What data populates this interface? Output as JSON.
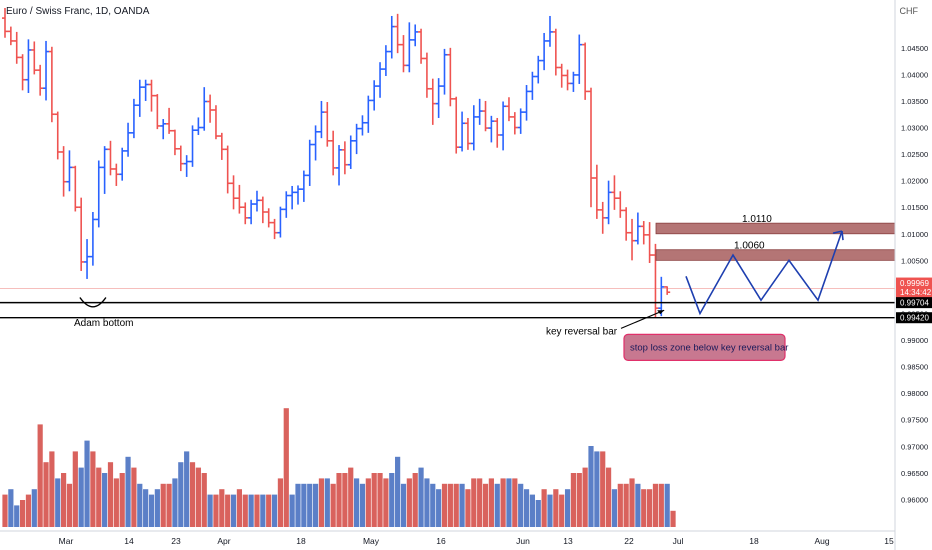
{
  "header": {
    "symbol": "Euro / Swiss Franc, 1D, OANDA",
    "currency": "CHF"
  },
  "colors": {
    "up": "#2962ff",
    "down": "#ef5350",
    "vol_up": "#5b7fc7",
    "vol_down": "#d9625d",
    "zone_fill": "#b47575",
    "arrow": "#1e3fb0",
    "stop_fill": "#c87890",
    "stop_border": "#e0306a"
  },
  "chart_data": {
    "type": "ohlc",
    "ylim": [
      0.9565,
      1.0525
    ],
    "yticks": [
      "1.04500",
      "1.04000",
      "1.03500",
      "1.03000",
      "1.02500",
      "1.02000",
      "1.01500",
      "1.01000",
      "1.00500",
      "1.00000",
      "0.99500",
      "0.99000",
      "0.98500",
      "0.98000",
      "0.97500",
      "0.97000",
      "0.96500",
      "0.96000"
    ],
    "xticks": [
      "Mar",
      "14",
      "23",
      "Apr",
      "18",
      "May",
      "16",
      "Jun",
      "13",
      "22",
      "Jul",
      "18",
      "Aug",
      "15"
    ],
    "bars": [
      {
        "o": 1.0506,
        "h": 1.0525,
        "l": 1.0469,
        "c": 1.0481
      },
      {
        "o": 1.0481,
        "h": 1.049,
        "l": 1.0455,
        "c": 1.0463
      },
      {
        "o": 1.0463,
        "h": 1.048,
        "l": 1.042,
        "c": 1.0432
      },
      {
        "o": 1.0432,
        "h": 1.0438,
        "l": 1.037,
        "c": 1.039
      },
      {
        "o": 1.039,
        "h": 1.0466,
        "l": 1.0365,
        "c": 1.0446
      },
      {
        "o": 1.0446,
        "h": 1.0462,
        "l": 1.04,
        "c": 1.0408
      },
      {
        "o": 1.0408,
        "h": 1.0418,
        "l": 1.036,
        "c": 1.0374
      },
      {
        "o": 1.0374,
        "h": 1.0463,
        "l": 1.0351,
        "c": 1.0443
      },
      {
        "o": 1.0443,
        "h": 1.0452,
        "l": 1.031,
        "c": 1.0325
      },
      {
        "o": 1.0325,
        "h": 1.033,
        "l": 1.024,
        "c": 1.0254
      },
      {
        "o": 1.0254,
        "h": 1.0265,
        "l": 1.017,
        "c": 1.0198
      },
      {
        "o": 1.0198,
        "h": 1.0257,
        "l": 1.018,
        "c": 1.0225
      },
      {
        "o": 1.0225,
        "h": 1.0228,
        "l": 1.0142,
        "c": 1.015
      },
      {
        "o": 1.015,
        "h": 1.0168,
        "l": 1.003,
        "c": 1.0047
      },
      {
        "o": 1.0047,
        "h": 1.009,
        "l": 1.0015,
        "c": 1.0057
      },
      {
        "o": 1.0057,
        "h": 1.0141,
        "l": 1.004,
        "c": 1.0127
      },
      {
        "o": 1.0127,
        "h": 1.0238,
        "l": 1.0112,
        "c": 1.0225
      },
      {
        "o": 1.0225,
        "h": 1.0265,
        "l": 1.0175,
        "c": 1.0259
      },
      {
        "o": 1.0259,
        "h": 1.0275,
        "l": 1.021,
        "c": 1.0222
      },
      {
        "o": 1.0222,
        "h": 1.0232,
        "l": 1.019,
        "c": 1.0212
      },
      {
        "o": 1.0212,
        "h": 1.0262,
        "l": 1.02,
        "c": 1.0256
      },
      {
        "o": 1.0256,
        "h": 1.0309,
        "l": 1.0245,
        "c": 1.029
      },
      {
        "o": 1.029,
        "h": 1.0354,
        "l": 1.028,
        "c": 1.0342
      },
      {
        "o": 1.0342,
        "h": 1.039,
        "l": 1.032,
        "c": 1.0376
      },
      {
        "o": 1.0376,
        "h": 1.039,
        "l": 1.035,
        "c": 1.0381
      },
      {
        "o": 1.0381,
        "h": 1.039,
        "l": 1.033,
        "c": 1.036
      },
      {
        "o": 1.036,
        "h": 1.0363,
        "l": 1.0297,
        "c": 1.0303
      },
      {
        "o": 1.0303,
        "h": 1.0316,
        "l": 1.0278,
        "c": 1.0307
      },
      {
        "o": 1.0307,
        "h": 1.0337,
        "l": 1.0288,
        "c": 1.0294
      },
      {
        "o": 1.0294,
        "h": 1.0296,
        "l": 1.0248,
        "c": 1.026
      },
      {
        "o": 1.026,
        "h": 1.0266,
        "l": 1.0218,
        "c": 1.0232
      },
      {
        "o": 1.0232,
        "h": 1.0248,
        "l": 1.0207,
        "c": 1.0236
      },
      {
        "o": 1.0236,
        "h": 1.0304,
        "l": 1.0226,
        "c": 1.0295
      },
      {
        "o": 1.0295,
        "h": 1.0319,
        "l": 1.0286,
        "c": 1.03
      },
      {
        "o": 1.03,
        "h": 1.0376,
        "l": 1.0294,
        "c": 1.0349
      },
      {
        "o": 1.0349,
        "h": 1.0362,
        "l": 1.0309,
        "c": 1.0333
      },
      {
        "o": 1.0333,
        "h": 1.0342,
        "l": 1.0278,
        "c": 1.0284
      },
      {
        "o": 1.0284,
        "h": 1.029,
        "l": 1.0239,
        "c": 1.0259
      },
      {
        "o": 1.0259,
        "h": 1.0266,
        "l": 1.0176,
        "c": 1.0195
      },
      {
        "o": 1.0195,
        "h": 1.021,
        "l": 1.0146,
        "c": 1.0167
      },
      {
        "o": 1.0167,
        "h": 1.0192,
        "l": 1.0138,
        "c": 1.015
      },
      {
        "o": 1.015,
        "h": 1.0159,
        "l": 1.0118,
        "c": 1.013
      },
      {
        "o": 1.013,
        "h": 1.0164,
        "l": 1.0118,
        "c": 1.0156
      },
      {
        "o": 1.0156,
        "h": 1.0181,
        "l": 1.0142,
        "c": 1.0163
      },
      {
        "o": 1.0163,
        "h": 1.017,
        "l": 1.012,
        "c": 1.0141
      },
      {
        "o": 1.0141,
        "h": 1.0148,
        "l": 1.0112,
        "c": 1.0121
      },
      {
        "o": 1.0121,
        "h": 1.0128,
        "l": 1.009,
        "c": 1.0102
      },
      {
        "o": 1.0102,
        "h": 1.0151,
        "l": 1.0093,
        "c": 1.0146
      },
      {
        "o": 1.0146,
        "h": 1.018,
        "l": 1.013,
        "c": 1.0172
      },
      {
        "o": 1.0172,
        "h": 1.019,
        "l": 1.0146,
        "c": 1.0178
      },
      {
        "o": 1.0178,
        "h": 1.0191,
        "l": 1.0155,
        "c": 1.0184
      },
      {
        "o": 1.0184,
        "h": 1.0219,
        "l": 1.016,
        "c": 1.021
      },
      {
        "o": 1.021,
        "h": 1.0277,
        "l": 1.019,
        "c": 1.0268
      },
      {
        "o": 1.0268,
        "h": 1.0304,
        "l": 1.0238,
        "c": 1.0292
      },
      {
        "o": 1.0292,
        "h": 1.035,
        "l": 1.028,
        "c": 1.0329
      },
      {
        "o": 1.0329,
        "h": 1.0348,
        "l": 1.0264,
        "c": 1.0275
      },
      {
        "o": 1.0275,
        "h": 1.0294,
        "l": 1.021,
        "c": 1.0224
      },
      {
        "o": 1.0224,
        "h": 1.0267,
        "l": 1.0191,
        "c": 1.0258
      },
      {
        "o": 1.0258,
        "h": 1.0274,
        "l": 1.0212,
        "c": 1.023
      },
      {
        "o": 1.023,
        "h": 1.0285,
        "l": 1.0222,
        "c": 1.0275
      },
      {
        "o": 1.0275,
        "h": 1.0307,
        "l": 1.025,
        "c": 1.0298
      },
      {
        "o": 1.0298,
        "h": 1.0323,
        "l": 1.0285,
        "c": 1.0309
      },
      {
        "o": 1.0309,
        "h": 1.036,
        "l": 1.029,
        "c": 1.0351
      },
      {
        "o": 1.0351,
        "h": 1.0389,
        "l": 1.0332,
        "c": 1.0378
      },
      {
        "o": 1.0378,
        "h": 1.0423,
        "l": 1.0356,
        "c": 1.041
      },
      {
        "o": 1.041,
        "h": 1.0455,
        "l": 1.0397,
        "c": 1.0443
      },
      {
        "o": 1.0443,
        "h": 1.051,
        "l": 1.043,
        "c": 1.049
      },
      {
        "o": 1.049,
        "h": 1.0514,
        "l": 1.044,
        "c": 1.0456
      },
      {
        "o": 1.0456,
        "h": 1.0474,
        "l": 1.0404,
        "c": 1.0417
      },
      {
        "o": 1.0417,
        "h": 1.0498,
        "l": 1.0404,
        "c": 1.0465
      },
      {
        "o": 1.0465,
        "h": 1.0494,
        "l": 1.0453,
        "c": 1.048
      },
      {
        "o": 1.048,
        "h": 1.0486,
        "l": 1.042,
        "c": 1.043
      },
      {
        "o": 1.043,
        "h": 1.0441,
        "l": 1.0356,
        "c": 1.0373
      },
      {
        "o": 1.0373,
        "h": 1.0392,
        "l": 1.0305,
        "c": 1.0345
      },
      {
        "o": 1.0345,
        "h": 1.0393,
        "l": 1.0318,
        "c": 1.0378
      },
      {
        "o": 1.0378,
        "h": 1.0448,
        "l": 1.0362,
        "c": 1.0437
      },
      {
        "o": 1.0437,
        "h": 1.045,
        "l": 1.034,
        "c": 1.0354
      },
      {
        "o": 1.0354,
        "h": 1.0358,
        "l": 1.0251,
        "c": 1.0263
      },
      {
        "o": 1.0263,
        "h": 1.033,
        "l": 1.0255,
        "c": 1.0308
      },
      {
        "o": 1.0308,
        "h": 1.0318,
        "l": 1.0258,
        "c": 1.027
      },
      {
        "o": 1.027,
        "h": 1.0342,
        "l": 1.0257,
        "c": 1.032
      },
      {
        "o": 1.032,
        "h": 1.0354,
        "l": 1.0305,
        "c": 1.0331
      },
      {
        "o": 1.0331,
        "h": 1.035,
        "l": 1.0293,
        "c": 1.0299
      },
      {
        "o": 1.0299,
        "h": 1.0322,
        "l": 1.0272,
        "c": 1.0312
      },
      {
        "o": 1.0312,
        "h": 1.0318,
        "l": 1.0262,
        "c": 1.0286
      },
      {
        "o": 1.0286,
        "h": 1.0349,
        "l": 1.0257,
        "c": 1.034
      },
      {
        "o": 1.034,
        "h": 1.0357,
        "l": 1.0312,
        "c": 1.032
      },
      {
        "o": 1.032,
        "h": 1.0329,
        "l": 1.0287,
        "c": 1.03
      },
      {
        "o": 1.03,
        "h": 1.0336,
        "l": 1.0288,
        "c": 1.0329
      },
      {
        "o": 1.0329,
        "h": 1.038,
        "l": 1.0313,
        "c": 1.0368
      },
      {
        "o": 1.0368,
        "h": 1.0405,
        "l": 1.0352,
        "c": 1.0396
      },
      {
        "o": 1.0396,
        "h": 1.0435,
        "l": 1.0383,
        "c": 1.0426
      },
      {
        "o": 1.0426,
        "h": 1.0478,
        "l": 1.0408,
        "c": 1.0463
      },
      {
        "o": 1.0463,
        "h": 1.051,
        "l": 1.0452,
        "c": 1.048
      },
      {
        "o": 1.048,
        "h": 1.0486,
        "l": 1.0398,
        "c": 1.0413
      },
      {
        "o": 1.0413,
        "h": 1.042,
        "l": 1.0375,
        "c": 1.0398
      },
      {
        "o": 1.0398,
        "h": 1.0409,
        "l": 1.037,
        "c": 1.0383
      },
      {
        "o": 1.0383,
        "h": 1.0405,
        "l": 1.0367,
        "c": 1.0399
      },
      {
        "o": 1.0399,
        "h": 1.0475,
        "l": 1.0382,
        "c": 1.0456
      },
      {
        "o": 1.0456,
        "h": 1.046,
        "l": 1.0352,
        "c": 1.0368
      },
      {
        "o": 1.0368,
        "h": 1.0375,
        "l": 1.015,
        "c": 1.0205
      },
      {
        "o": 1.0205,
        "h": 1.023,
        "l": 1.0128,
        "c": 1.0145
      },
      {
        "o": 1.0145,
        "h": 1.016,
        "l": 1.01,
        "c": 1.013
      },
      {
        "o": 1.013,
        "h": 1.02,
        "l": 1.0118,
        "c": 1.0178
      },
      {
        "o": 1.0178,
        "h": 1.021,
        "l": 1.0145,
        "c": 1.0167
      },
      {
        "o": 1.0167,
        "h": 1.018,
        "l": 1.013,
        "c": 1.0144
      },
      {
        "o": 1.0144,
        "h": 1.015,
        "l": 1.0087,
        "c": 1.0102
      },
      {
        "o": 1.0102,
        "h": 1.0128,
        "l": 1.005,
        "c": 1.0087
      },
      {
        "o": 1.0087,
        "h": 1.014,
        "l": 1.008,
        "c": 1.0114
      },
      {
        "o": 1.0114,
        "h": 1.0124,
        "l": 1.008,
        "c": 1.0098
      },
      {
        "o": 1.0098,
        "h": 1.0122,
        "l": 1.0045,
        "c": 1.006
      },
      {
        "o": 1.006,
        "h": 1.0081,
        "l": 0.9942,
        "c": 0.996
      },
      {
        "o": 0.996,
        "h": 1.0019,
        "l": 0.9945,
        "c": 1.0
      },
      {
        "o": 1.0,
        "h": 1.0001,
        "l": 0.9985,
        "c": 0.999
      }
    ],
    "volume": [
      {
        "v": 6,
        "up": false
      },
      {
        "v": 7,
        "up": true
      },
      {
        "v": 4,
        "up": true
      },
      {
        "v": 5,
        "up": false
      },
      {
        "v": 6,
        "up": false
      },
      {
        "v": 7,
        "up": true
      },
      {
        "v": 19,
        "up": false
      },
      {
        "v": 12,
        "up": false
      },
      {
        "v": 14,
        "up": false
      },
      {
        "v": 9,
        "up": true
      },
      {
        "v": 10,
        "up": false
      },
      {
        "v": 8,
        "up": false
      },
      {
        "v": 14,
        "up": false
      },
      {
        "v": 11,
        "up": true
      },
      {
        "v": 16,
        "up": true
      },
      {
        "v": 14,
        "up": false
      },
      {
        "v": 11,
        "up": false
      },
      {
        "v": 10,
        "up": true
      },
      {
        "v": 12,
        "up": false
      },
      {
        "v": 9,
        "up": false
      },
      {
        "v": 10,
        "up": false
      },
      {
        "v": 13,
        "up": true
      },
      {
        "v": 11,
        "up": false
      },
      {
        "v": 8,
        "up": true
      },
      {
        "v": 7,
        "up": true
      },
      {
        "v": 6,
        "up": true
      },
      {
        "v": 7,
        "up": true
      },
      {
        "v": 8,
        "up": false
      },
      {
        "v": 8,
        "up": false
      },
      {
        "v": 9,
        "up": true
      },
      {
        "v": 12,
        "up": true
      },
      {
        "v": 14,
        "up": true
      },
      {
        "v": 12,
        "up": false
      },
      {
        "v": 11,
        "up": false
      },
      {
        "v": 10,
        "up": false
      },
      {
        "v": 6,
        "up": true
      },
      {
        "v": 6,
        "up": false
      },
      {
        "v": 7,
        "up": false
      },
      {
        "v": 6,
        "up": false
      },
      {
        "v": 6,
        "up": true
      },
      {
        "v": 7,
        "up": false
      },
      {
        "v": 6,
        "up": false
      },
      {
        "v": 6,
        "up": true
      },
      {
        "v": 6,
        "up": false
      },
      {
        "v": 6,
        "up": true
      },
      {
        "v": 6,
        "up": false
      },
      {
        "v": 6,
        "up": true
      },
      {
        "v": 9,
        "up": false
      },
      {
        "v": 22,
        "up": false
      },
      {
        "v": 6,
        "up": true
      },
      {
        "v": 8,
        "up": true
      },
      {
        "v": 8,
        "up": true
      },
      {
        "v": 8,
        "up": true
      },
      {
        "v": 8,
        "up": true
      },
      {
        "v": 9,
        "up": false
      },
      {
        "v": 9,
        "up": true
      },
      {
        "v": 8,
        "up": false
      },
      {
        "v": 10,
        "up": false
      },
      {
        "v": 10,
        "up": false
      },
      {
        "v": 11,
        "up": false
      },
      {
        "v": 9,
        "up": true
      },
      {
        "v": 8,
        "up": true
      },
      {
        "v": 9,
        "up": false
      },
      {
        "v": 10,
        "up": false
      },
      {
        "v": 10,
        "up": false
      },
      {
        "v": 9,
        "up": false
      },
      {
        "v": 10,
        "up": true
      },
      {
        "v": 13,
        "up": true
      },
      {
        "v": 8,
        "up": true
      },
      {
        "v": 9,
        "up": false
      },
      {
        "v": 10,
        "up": false
      },
      {
        "v": 11,
        "up": true
      },
      {
        "v": 9,
        "up": true
      },
      {
        "v": 8,
        "up": true
      },
      {
        "v": 7,
        "up": true
      },
      {
        "v": 8,
        "up": false
      },
      {
        "v": 8,
        "up": false
      },
      {
        "v": 8,
        "up": false
      },
      {
        "v": 8,
        "up": true
      },
      {
        "v": 7,
        "up": false
      },
      {
        "v": 9,
        "up": false
      },
      {
        "v": 9,
        "up": false
      },
      {
        "v": 8,
        "up": false
      },
      {
        "v": 9,
        "up": false
      },
      {
        "v": 8,
        "up": true
      },
      {
        "v": 9,
        "up": false
      },
      {
        "v": 9,
        "up": true
      },
      {
        "v": 9,
        "up": false
      },
      {
        "v": 8,
        "up": true
      },
      {
        "v": 7,
        "up": true
      },
      {
        "v": 6,
        "up": true
      },
      {
        "v": 5,
        "up": true
      },
      {
        "v": 7,
        "up": false
      },
      {
        "v": 6,
        "up": true
      },
      {
        "v": 7,
        "up": false
      },
      {
        "v": 6,
        "up": false
      },
      {
        "v": 7,
        "up": true
      },
      {
        "v": 10,
        "up": false
      },
      {
        "v": 10,
        "up": false
      },
      {
        "v": 11,
        "up": false
      },
      {
        "v": 15,
        "up": true
      },
      {
        "v": 14,
        "up": true
      },
      {
        "v": 14,
        "up": false
      },
      {
        "v": 11,
        "up": false
      },
      {
        "v": 7,
        "up": true
      },
      {
        "v": 8,
        "up": false
      },
      {
        "v": 8,
        "up": false
      },
      {
        "v": 9,
        "up": false
      },
      {
        "v": 8,
        "up": true
      },
      {
        "v": 7,
        "up": false
      },
      {
        "v": 7,
        "up": false
      },
      {
        "v": 8,
        "up": false
      },
      {
        "v": 8,
        "up": false
      },
      {
        "v": 8,
        "up": true
      },
      {
        "v": 3,
        "up": false
      }
    ],
    "price_tags": [
      {
        "value": "0.99969",
        "sub": "14:34:42",
        "fill": "#ef5350",
        "text": "#ffffff",
        "level": 0.99969
      },
      {
        "value": "0.99704",
        "sub": "",
        "fill": "#000000",
        "text": "#ffffff",
        "level": 0.99704
      },
      {
        "value": "0.99420",
        "sub": "",
        "fill": "#000000",
        "text": "#ffffff",
        "level": 0.9942
      }
    ],
    "zones": [
      {
        "label": "1.0110",
        "low": 1.01,
        "high": 1.012
      },
      {
        "label": "1.0060",
        "low": 1.005,
        "high": 1.007
      }
    ],
    "annotations": {
      "adam_bottom": "Adam bottom",
      "key_reversal": "key reversal bar",
      "stop_loss": "stop loss zone below key reversal bar"
    },
    "projection": [
      1.002,
      0.995,
      1.006,
      0.9975,
      1.005,
      0.9975,
      1.0105
    ]
  }
}
